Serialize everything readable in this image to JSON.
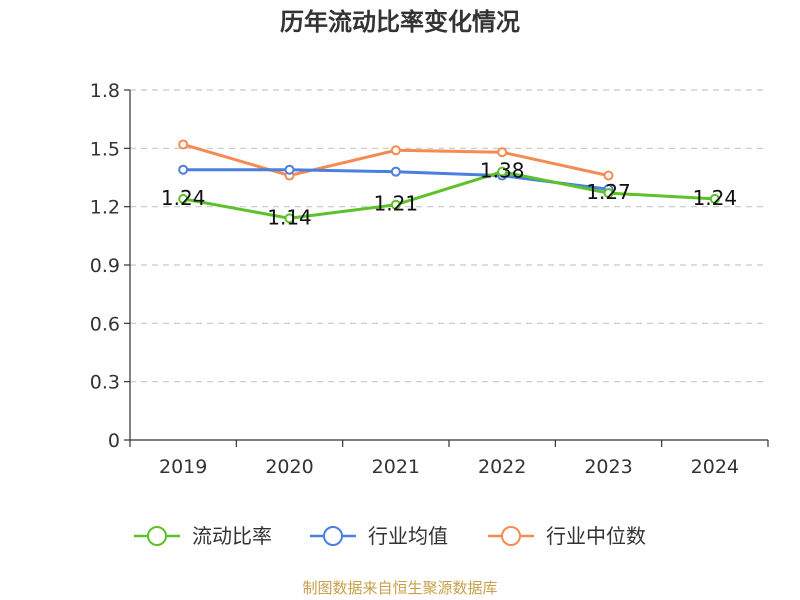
{
  "chart_data": {
    "type": "line",
    "title": "历年流动比率变化情况",
    "categories": [
      "2019",
      "2020",
      "2021",
      "2022",
      "2023",
      "2024"
    ],
    "ylim": [
      0,
      1.8
    ],
    "yticks": [
      "0",
      "0.3",
      "0.6",
      "0.9",
      "1.2",
      "1.5",
      "1.8"
    ],
    "grid": "horizontal-dashed",
    "legend_position": "bottom",
    "series": [
      {
        "name": "流动比率",
        "color": "#5cc12a",
        "values": [
          1.24,
          1.14,
          1.21,
          1.38,
          1.27,
          1.24
        ],
        "labels": [
          "1.24",
          "1.14",
          "1.21",
          "1.38",
          "1.27",
          "1.24"
        ]
      },
      {
        "name": "行业均值",
        "color": "#4a7fe0",
        "values": [
          1.39,
          1.39,
          1.38,
          1.36,
          1.29,
          null
        ]
      },
      {
        "name": "行业中位数",
        "color": "#f58b53",
        "values": [
          1.52,
          1.36,
          1.49,
          1.48,
          1.36,
          null
        ]
      }
    ]
  },
  "source_note": "制图数据来自恒生聚源数据库"
}
